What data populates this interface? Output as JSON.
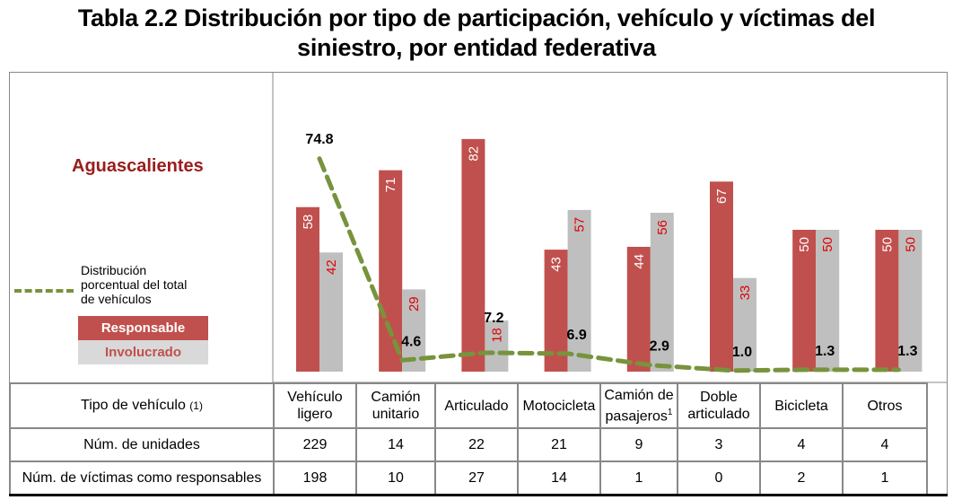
{
  "title": "Tabla 2.2 Distribución por tipo de participación, vehículo y víctimas del siniestro, por entidad federativa",
  "title_line1": "Tabla 2.2 Distribución por tipo de participación, vehículo y víctimas del",
  "title_line2": "siniestro, por entidad federativa",
  "entity": "Aguascalientes",
  "legend": {
    "line_label": "Distribución porcentual del total de vehículos",
    "line_label_lines": [
      "Distribución",
      "porcentual del total",
      "de vehículos"
    ],
    "responsable": "Responsable",
    "involucrado": "Involucrado"
  },
  "colors": {
    "responsable": "#c0504d",
    "involucrado": "#bfbfbf",
    "line": "#77933c",
    "entity": "#9b1c1c",
    "inv_label": "#e00000"
  },
  "chart_data": {
    "type": "bar",
    "title": "Aguascalientes",
    "categories": [
      "Vehículo ligero",
      "Camión unitario",
      "Articulado",
      "Motocicleta",
      "Camión de pasajeros",
      "Doble articulado",
      "Bicicleta",
      "Otros"
    ],
    "series": [
      {
        "name": "Responsable",
        "type": "bar",
        "values": [
          58,
          71,
          82,
          43,
          44,
          67,
          50,
          50
        ]
      },
      {
        "name": "Involucrado",
        "type": "bar",
        "values": [
          42,
          29,
          18,
          57,
          56,
          33,
          50,
          50
        ]
      },
      {
        "name": "Distribución porcentual del total de vehículos",
        "type": "line",
        "style": "dashed",
        "values": [
          74.8,
          4.6,
          7.2,
          6.9,
          2.9,
          1.0,
          1.3,
          1.3
        ]
      }
    ],
    "ylim": [
      0,
      100
    ],
    "grid": false,
    "legend_position": "left",
    "xlabel": "",
    "ylabel": ""
  },
  "table": {
    "header_label": "Tipo de vehículo",
    "header_note": "(1)",
    "columns": [
      {
        "line1": "Vehículo",
        "line2": "ligero",
        "sup": ""
      },
      {
        "line1": "Camión",
        "line2": "unitario",
        "sup": ""
      },
      {
        "line1": "Articulado",
        "line2": "",
        "sup": ""
      },
      {
        "line1": "Motocicleta",
        "line2": "",
        "sup": ""
      },
      {
        "line1": "Camión de",
        "line2": "pasajeros",
        "sup": "1"
      },
      {
        "line1": "Doble",
        "line2": "articulado",
        "sup": ""
      },
      {
        "line1": "Bicicleta",
        "line2": "",
        "sup": ""
      },
      {
        "line1": "Otros",
        "line2": "",
        "sup": ""
      }
    ],
    "rows": [
      {
        "label": "Núm. de unidades",
        "values": [
          "229",
          "14",
          "22",
          "21",
          "9",
          "3",
          "4",
          "4"
        ]
      },
      {
        "label": "Núm. de víctimas como responsables",
        "values": [
          "198",
          "10",
          "27",
          "14",
          "1",
          "0",
          "2",
          "1"
        ]
      }
    ]
  }
}
